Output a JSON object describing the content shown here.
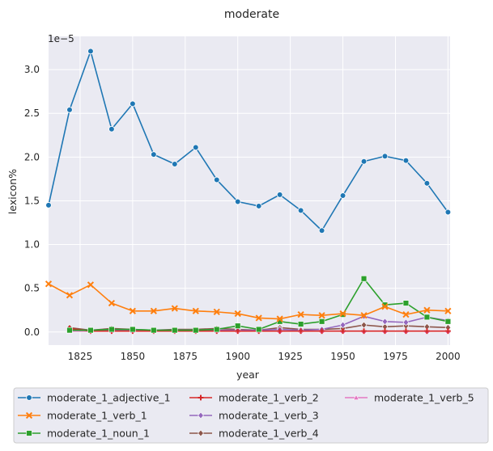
{
  "chart_data": {
    "type": "line",
    "title": "moderate",
    "xlabel": "year",
    "ylabel": "lexicon%",
    "y_scale_label": "1e−5",
    "xlim": [
      1810,
      2001
    ],
    "ylim": [
      -0.15,
      3.38
    ],
    "x_ticks": [
      1825,
      1850,
      1875,
      1900,
      1925,
      1950,
      1975,
      2000
    ],
    "y_ticks": [
      0.0,
      0.5,
      1.0,
      1.5,
      2.0,
      2.5,
      3.0
    ],
    "y_tick_labels": [
      "0.0",
      "0.5",
      "1.0",
      "1.5",
      "2.0",
      "2.5",
      "3.0"
    ],
    "grid": true,
    "legend_position": "bottom",
    "series": [
      {
        "name": "moderate_1_adjective_1",
        "color": "#1f77b4",
        "marker": "circle",
        "x": [
          1810,
          1820,
          1830,
          1840,
          1850,
          1860,
          1870,
          1880,
          1890,
          1900,
          1910,
          1920,
          1930,
          1940,
          1950,
          1960,
          1970,
          1980,
          1990,
          2000
        ],
        "y": [
          1.45,
          2.54,
          3.21,
          2.32,
          2.61,
          2.03,
          1.92,
          2.11,
          1.74,
          1.49,
          1.44,
          1.57,
          1.39,
          1.16,
          1.56,
          1.95,
          2.01,
          1.96,
          1.7,
          1.37
        ]
      },
      {
        "name": "moderate_1_verb_1",
        "color": "#ff7f0e",
        "marker": "x",
        "x": [
          1810,
          1820,
          1830,
          1840,
          1850,
          1860,
          1870,
          1880,
          1890,
          1900,
          1910,
          1920,
          1930,
          1940,
          1950,
          1960,
          1970,
          1980,
          1990,
          2000
        ],
        "y": [
          0.55,
          0.42,
          0.54,
          0.33,
          0.24,
          0.24,
          0.27,
          0.24,
          0.23,
          0.21,
          0.16,
          0.15,
          0.2,
          0.19,
          0.21,
          0.19,
          0.29,
          0.2,
          0.25,
          0.24
        ]
      },
      {
        "name": "moderate_1_noun_1",
        "color": "#2ca02c",
        "marker": "square",
        "x": [
          1820,
          1830,
          1840,
          1850,
          1860,
          1870,
          1880,
          1890,
          1900,
          1910,
          1920,
          1930,
          1940,
          1950,
          1960,
          1970,
          1980,
          1990,
          2000
        ],
        "y": [
          0.02,
          0.02,
          0.03,
          0.03,
          0.02,
          0.02,
          0.02,
          0.03,
          0.07,
          0.03,
          0.12,
          0.09,
          0.12,
          0.2,
          0.61,
          0.31,
          0.33,
          0.17,
          0.12
        ]
      },
      {
        "name": "moderate_1_verb_2",
        "color": "#d62728",
        "marker": "plus",
        "x": [
          1820,
          1830,
          1840,
          1850,
          1860,
          1870,
          1880,
          1890,
          1900,
          1910,
          1920,
          1930,
          1940,
          1950,
          1960,
          1970,
          1980,
          1990,
          2000
        ],
        "y": [
          0.04,
          0.01,
          0.01,
          0.01,
          0.01,
          0.01,
          0.01,
          0.01,
          0.01,
          0.01,
          0.01,
          0.01,
          0.01,
          0.01,
          0.01,
          0.01,
          0.01,
          0.01,
          0.01
        ]
      },
      {
        "name": "moderate_1_verb_3",
        "color": "#9467bd",
        "marker": "diamond",
        "x": [
          1820,
          1830,
          1840,
          1850,
          1860,
          1870,
          1880,
          1890,
          1900,
          1910,
          1920,
          1930,
          1940,
          1950,
          1960,
          1970,
          1980,
          1990,
          2000
        ],
        "y": [
          0.02,
          0.02,
          0.02,
          0.02,
          0.02,
          0.02,
          0.02,
          0.02,
          0.02,
          0.02,
          0.03,
          0.02,
          0.03,
          0.08,
          0.18,
          0.12,
          0.11,
          0.17,
          0.13
        ]
      },
      {
        "name": "moderate_1_verb_4",
        "color": "#8c564b",
        "marker": "diamond",
        "x": [
          1820,
          1830,
          1840,
          1850,
          1860,
          1870,
          1880,
          1890,
          1900,
          1910,
          1920,
          1930,
          1940,
          1950,
          1960,
          1970,
          1980,
          1990,
          2000
        ],
        "y": [
          0.05,
          0.02,
          0.04,
          0.03,
          0.02,
          0.03,
          0.03,
          0.04,
          0.03,
          0.02,
          0.05,
          0.03,
          0.03,
          0.04,
          0.08,
          0.06,
          0.07,
          0.06,
          0.05
        ]
      },
      {
        "name": "moderate_1_verb_5",
        "color": "#e377c2",
        "marker": "triangle",
        "x": [
          1820,
          1830,
          1840,
          1850,
          1860,
          1870,
          1880,
          1890,
          1900,
          1910,
          1920,
          1930,
          1940,
          1950,
          1960,
          1970,
          1980,
          1990,
          2000
        ],
        "y": [
          0.01,
          0.01,
          0.01,
          0.01,
          0.01,
          0.01,
          0.01,
          0.01,
          0.01,
          0.01,
          0.01,
          0.01,
          0.01,
          0.01,
          0.01,
          0.01,
          0.01,
          0.01,
          0.01
        ]
      }
    ]
  }
}
